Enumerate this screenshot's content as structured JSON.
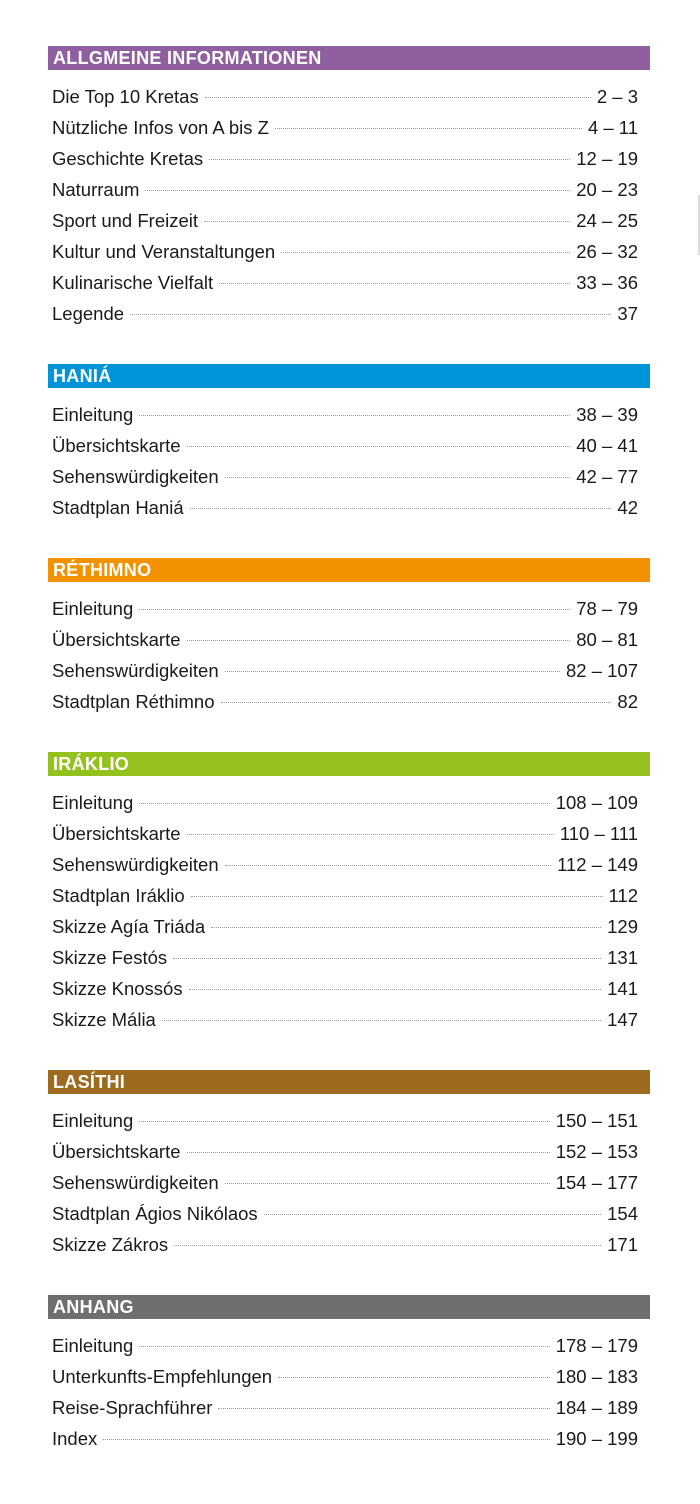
{
  "sections": [
    {
      "title": "ALLGMEINE INFORMATIONEN",
      "color": "#8f5fa0",
      "items": [
        {
          "label": "Die Top 10 Kretas",
          "pages": "2 – 3"
        },
        {
          "label": "Nützliche Infos von A bis Z",
          "pages": "4  – 11"
        },
        {
          "label": "Geschichte Kretas",
          "pages": "12 – 19"
        },
        {
          "label": "Naturraum",
          "pages": "20 – 23"
        },
        {
          "label": "Sport und Freizeit",
          "pages": "24 – 25"
        },
        {
          "label": "Kultur und Veranstaltungen",
          "pages": "26 – 32"
        },
        {
          "label": "Kulinarische Vielfalt",
          "pages": "33 – 36"
        },
        {
          "label": "Legende",
          "pages": "37"
        }
      ]
    },
    {
      "title": "HANIÁ",
      "color": "#0095d9",
      "items": [
        {
          "label": "Einleitung",
          "pages": "38 – 39"
        },
        {
          "label": "Übersichtskarte",
          "pages": "40 – 41"
        },
        {
          "label": "Sehenswürdigkeiten",
          "pages": "42 – 77"
        },
        {
          "label": "Stadtplan Haniá",
          "pages": "42"
        }
      ]
    },
    {
      "title": "RÉTHIMNO",
      "color": "#f39200",
      "items": [
        {
          "label": "Einleitung",
          "pages": "78 – 79"
        },
        {
          "label": "Übersichtskarte",
          "pages": "80 – 81"
        },
        {
          "label": "Sehenswürdigkeiten",
          "pages": "82 – 107"
        },
        {
          "label": "Stadtplan Réthimno",
          "pages": "82"
        }
      ]
    },
    {
      "title": "IRÁKLIO",
      "color": "#95c11f",
      "items": [
        {
          "label": "Einleitung",
          "pages": "108 – 109"
        },
        {
          "label": "Übersichtskarte",
          "pages": "110 – 111"
        },
        {
          "label": "Sehenswürdigkeiten",
          "pages": "112 – 149"
        },
        {
          "label": "Stadtplan Iráklio",
          "pages": "112"
        },
        {
          "label": "Skizze Agía Triáda",
          "pages": "129"
        },
        {
          "label": "Skizze Festós",
          "pages": "131"
        },
        {
          "label": "Skizze Knossós",
          "pages": "141"
        },
        {
          "label": "Skizze Mália",
          "pages": "147"
        }
      ]
    },
    {
      "title": "LASÍTHI",
      "color": "#9d6b20",
      "items": [
        {
          "label": "Einleitung",
          "pages": "150 – 151"
        },
        {
          "label": "Übersichtskarte",
          "pages": "152 – 153"
        },
        {
          "label": "Sehenswürdigkeiten",
          "pages": "154 – 177"
        },
        {
          "label": "Stadtplan Ágios Nikólaos",
          "pages": "154"
        },
        {
          "label": "Skizze Zákros",
          "pages": "171"
        }
      ]
    },
    {
      "title": "ANHANG",
      "color": "#6f6f6e",
      "items": [
        {
          "label": "Einleitung",
          "pages": "178 – 179"
        },
        {
          "label": "Unterkunfts-Empfehlungen",
          "pages": "180 – 183"
        },
        {
          "label": "Reise-Sprachführer",
          "pages": "184 – 189"
        },
        {
          "label": "Index",
          "pages": "190 – 199"
        }
      ]
    }
  ]
}
